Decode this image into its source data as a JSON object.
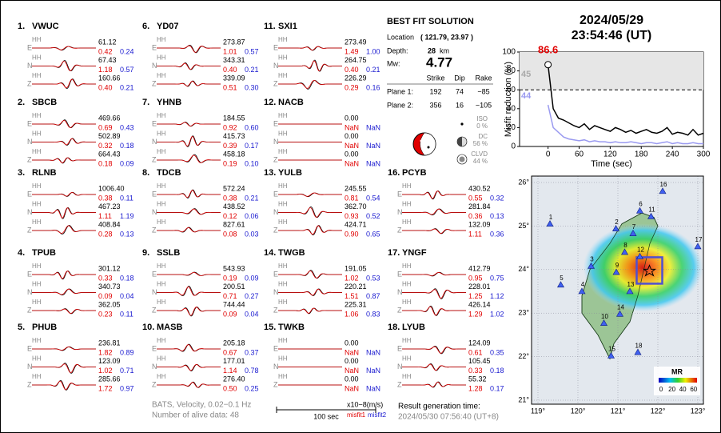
{
  "header": {
    "date": "2024/05/29",
    "time": "23:54:46  (UT)"
  },
  "stations": [
    {
      "number": "1.",
      "name": "VWUC",
      "traces": [
        [
          "E",
          "HH",
          "61.12",
          "0.42",
          "0.24"
        ],
        [
          "N",
          "HH",
          "67.43",
          "1.18",
          "0.57"
        ],
        [
          "Z",
          "HH",
          "160.66",
          "0.40",
          "0.21"
        ]
      ]
    },
    {
      "number": "2.",
      "name": "SBCB",
      "traces": [
        [
          "E",
          "HH",
          "469.66",
          "0.69",
          "0.43"
        ],
        [
          "N",
          "HH",
          "502.89",
          "0.32",
          "0.18"
        ],
        [
          "Z",
          "HH",
          "664.43",
          "0.18",
          "0.09"
        ]
      ]
    },
    {
      "number": "3.",
      "name": "RLNB",
      "traces": [
        [
          "E",
          "HH",
          "1006.40",
          "0.38",
          "0.11"
        ],
        [
          "N",
          "HH",
          "467.23",
          "1.11",
          "1.19"
        ],
        [
          "Z",
          "HH",
          "408.84",
          "0.28",
          "0.13"
        ]
      ]
    },
    {
      "number": "4.",
      "name": "TPUB",
      "traces": [
        [
          "E",
          "HH",
          "301.12",
          "0.33",
          "0.18"
        ],
        [
          "N",
          "HH",
          "340.73",
          "0.09",
          "0.04"
        ],
        [
          "Z",
          "HH",
          "362.05",
          "0.23",
          "0.11"
        ]
      ]
    },
    {
      "number": "5.",
      "name": "PHUB",
      "traces": [
        [
          "E",
          "HH",
          "236.81",
          "1.82",
          "0.89"
        ],
        [
          "N",
          "HH",
          "123.09",
          "1.02",
          "0.71"
        ],
        [
          "Z",
          "HH",
          "285.66",
          "1.72",
          "0.97"
        ]
      ]
    },
    {
      "number": "6.",
      "name": "YD07",
      "traces": [
        [
          "E",
          "HH",
          "273.87",
          "1.01",
          "0.57"
        ],
        [
          "N",
          "HH",
          "343.31",
          "0.40",
          "0.21"
        ],
        [
          "Z",
          "HH",
          "339.09",
          "0.51",
          "0.30"
        ]
      ]
    },
    {
      "number": "7.",
      "name": "YHNB",
      "traces": [
        [
          "E",
          "HH",
          "184.55",
          "0.92",
          "0.60"
        ],
        [
          "N",
          "HH",
          "415.73",
          "0.39",
          "0.17"
        ],
        [
          "Z",
          "HH",
          "458.18",
          "0.19",
          "0.10"
        ]
      ]
    },
    {
      "number": "8.",
      "name": "TDCB",
      "traces": [
        [
          "E",
          "HH",
          "572.24",
          "0.38",
          "0.21"
        ],
        [
          "N",
          "HH",
          "438.52",
          "0.12",
          "0.06"
        ],
        [
          "Z",
          "HH",
          "827.61",
          "0.08",
          "0.03"
        ]
      ]
    },
    {
      "number": "9.",
      "name": "SSLB",
      "traces": [
        [
          "E",
          "HH",
          "543.93",
          "0.19",
          "0.09"
        ],
        [
          "N",
          "HH",
          "200.51",
          "0.71",
          "0.27"
        ],
        [
          "Z",
          "HH",
          "744.44",
          "0.09",
          "0.04"
        ]
      ]
    },
    {
      "number": "10.",
      "name": "MASB",
      "traces": [
        [
          "E",
          "HH",
          "205.18",
          "0.67",
          "0.37"
        ],
        [
          "N",
          "HH",
          "177.01",
          "1.14",
          "0.78"
        ],
        [
          "Z",
          "HH",
          "276.40",
          "0.50",
          "0.25"
        ]
      ]
    },
    {
      "number": "11.",
      "name": "SXI1",
      "traces": [
        [
          "E",
          "HH",
          "273.49",
          "1.49",
          "1.00"
        ],
        [
          "N",
          "HH",
          "264.75",
          "0.40",
          "0.21"
        ],
        [
          "Z",
          "HH",
          "226.29",
          "0.29",
          "0.16"
        ]
      ]
    },
    {
      "number": "12.",
      "name": "NACB",
      "traces": [
        [
          "E",
          "HH",
          "0.00",
          "NaN",
          "NaN"
        ],
        [
          "N",
          "HH",
          "0.00",
          "NaN",
          "NaN"
        ],
        [
          "Z",
          "HH",
          "0.00",
          "NaN",
          "NaN"
        ]
      ]
    },
    {
      "number": "13.",
      "name": "YULB",
      "traces": [
        [
          "E",
          "HH",
          "245.55",
          "0.81",
          "0.54"
        ],
        [
          "N",
          "HH",
          "362.70",
          "0.93",
          "0.52"
        ],
        [
          "Z",
          "HH",
          "424.71",
          "0.90",
          "0.65"
        ]
      ]
    },
    {
      "number": "14.",
      "name": "TWGB",
      "traces": [
        [
          "E",
          "HH",
          "191.05",
          "1.02",
          "0.53"
        ],
        [
          "N",
          "HH",
          "220.21",
          "1.51",
          "0.87"
        ],
        [
          "Z",
          "HH",
          "225.31",
          "1.06",
          "0.83"
        ]
      ]
    },
    {
      "number": "15.",
      "name": "TWKB",
      "traces": [
        [
          "E",
          "HH",
          "0.00",
          "NaN",
          "NaN"
        ],
        [
          "N",
          "HH",
          "0.00",
          "NaN",
          "NaN"
        ],
        [
          "Z",
          "HH",
          "0.00",
          "NaN",
          "NaN"
        ]
      ]
    },
    {
      "number": "16.",
      "name": "PCYB",
      "traces": [
        [
          "E",
          "HH",
          "430.52",
          "0.55",
          "0.32"
        ],
        [
          "N",
          "HH",
          "281.84",
          "0.36",
          "0.13"
        ],
        [
          "Z",
          "HH",
          "132.09",
          "1.11",
          "0.36"
        ]
      ]
    },
    {
      "number": "17.",
      "name": "YNGF",
      "traces": [
        [
          "E",
          "HH",
          "412.79",
          "0.95",
          "0.75"
        ],
        [
          "N",
          "HH",
          "228.01",
          "1.25",
          "1.12"
        ],
        [
          "Z",
          "HH",
          "426.14",
          "1.29",
          "1.02"
        ]
      ]
    },
    {
      "number": "18.",
      "name": "LYUB",
      "traces": [
        [
          "E",
          "HH",
          "124.09",
          "0.61",
          "0.35"
        ],
        [
          "N",
          "HH",
          "105.45",
          "0.33",
          "0.18"
        ],
        [
          "Z",
          "HH",
          "55.32",
          "1.28",
          "0.17"
        ]
      ]
    }
  ],
  "solution": {
    "title": "BEST FIT SOLUTION",
    "location_label": "Location",
    "location": "( 121.79, 23.97 )",
    "depth_label": "Depth:",
    "depth": "28",
    "depth_unit": "km",
    "mw_label": "Mw:",
    "mw": "4.77",
    "columns": [
      "Strike",
      "Dip",
      "Rake"
    ],
    "planes": [
      [
        "Plane 1:",
        "192",
        "74",
        "−85"
      ],
      [
        "Plane 2:",
        "356",
        "16",
        "−105"
      ]
    ],
    "components": [
      [
        "ISO",
        "0 %"
      ],
      [
        "DC",
        "56 %"
      ],
      [
        "CLVD",
        "44 %"
      ]
    ]
  },
  "footer": {
    "source": "BATS, Velocity, 0.02−0.1 Hz",
    "alive": "Number of alive data: 48",
    "scale": "100 sec",
    "units": "x10−8(m/s)",
    "misfit1": "misfit1",
    "misfit2": "misfit2",
    "gen_label": "Result generation time:",
    "gen_time": "2024/05/30 07:56:40 (UT+8)"
  },
  "chart_data": {
    "type": "line",
    "xlabel": "Time (sec)",
    "ylabel": "Misfit reduction (%)",
    "x": [
      0,
      10,
      20,
      30,
      40,
      50,
      60,
      70,
      80,
      90,
      100,
      110,
      120,
      130,
      140,
      150,
      160,
      170,
      180,
      190,
      200,
      210,
      220,
      230,
      240,
      250,
      260,
      270,
      280,
      290,
      300
    ],
    "series": [
      {
        "color": "#000000",
        "values": [
          86.6,
          40,
          30,
          28,
          25,
          22,
          20,
          24,
          18,
          22,
          20,
          18,
          16,
          20,
          18,
          15,
          17,
          14,
          16,
          18,
          15,
          14,
          16,
          20,
          13,
          15,
          14,
          12,
          18,
          12,
          14
        ]
      },
      {
        "color": "#9a9af0",
        "values": [
          44,
          20,
          15,
          10,
          8,
          7,
          6,
          7,
          5,
          6,
          5,
          5,
          4,
          5,
          4,
          4,
          5,
          4,
          3,
          4,
          4,
          3,
          4,
          5,
          3,
          4,
          3,
          3,
          4,
          3,
          3
        ]
      }
    ],
    "xlim": [
      -55,
      300
    ],
    "xticks": [
      0,
      60,
      120,
      180,
      240,
      300
    ],
    "ylim": [
      0,
      100
    ],
    "yticks": [
      0,
      20,
      40,
      60,
      80,
      100
    ],
    "reference_line": 60,
    "annotations": [
      {
        "text": "86.6",
        "color": "#e00000"
      },
      {
        "text": "45",
        "color": "#aaaaaa"
      },
      {
        "text": "44",
        "color": "#9a9af0"
      }
    ]
  },
  "map": {
    "xlim": [
      119,
      123
    ],
    "ylim": [
      21,
      26
    ],
    "xticks": [
      {
        "value": 119,
        "label": "119°"
      },
      {
        "value": 120,
        "label": "120°"
      },
      {
        "value": 121,
        "label": "121°"
      },
      {
        "value": 122,
        "label": "122°"
      },
      {
        "value": 123,
        "label": "123°"
      }
    ],
    "yticks": [
      {
        "value": 21,
        "label": "21°"
      },
      {
        "value": 22,
        "label": "22°"
      },
      {
        "value": 23,
        "label": "23°"
      },
      {
        "value": 24,
        "label": "24°"
      },
      {
        "value": 25,
        "label": "25°"
      },
      {
        "value": 26,
        "label": "26°"
      }
    ],
    "epicenter": [
      121.79,
      23.97
    ],
    "markers": [
      {
        "label": "1",
        "lon": 119.3,
        "lat": 25.05
      },
      {
        "label": "2",
        "lon": 120.95,
        "lat": 24.94
      },
      {
        "label": "3",
        "lon": 120.33,
        "lat": 24.08
      },
      {
        "label": "4",
        "lon": 120.1,
        "lat": 23.5
      },
      {
        "label": "5",
        "lon": 119.57,
        "lat": 23.65
      },
      {
        "label": "6",
        "lon": 121.55,
        "lat": 25.35
      },
      {
        "label": "7",
        "lon": 121.38,
        "lat": 24.83
      },
      {
        "label": "8",
        "lon": 121.17,
        "lat": 24.4
      },
      {
        "label": "9",
        "lon": 120.96,
        "lat": 23.94
      },
      {
        "label": "10",
        "lon": 120.65,
        "lat": 22.77
      },
      {
        "label": "11",
        "lon": 121.83,
        "lat": 25.22
      },
      {
        "label": "12",
        "lon": 121.55,
        "lat": 24.3
      },
      {
        "label": "13",
        "lon": 121.3,
        "lat": 23.5
      },
      {
        "label": "14",
        "lon": 121.05,
        "lat": 22.98
      },
      {
        "label": "15",
        "lon": 120.83,
        "lat": 22.02
      },
      {
        "label": "16",
        "lon": 122.12,
        "lat": 25.8
      },
      {
        "label": "17",
        "lon": 123.0,
        "lat": 24.53
      },
      {
        "label": "18",
        "lon": 121.5,
        "lat": 22.1
      }
    ],
    "colorbar_title": "MR",
    "colorbar_ticks": [
      0,
      20,
      40,
      60
    ]
  }
}
